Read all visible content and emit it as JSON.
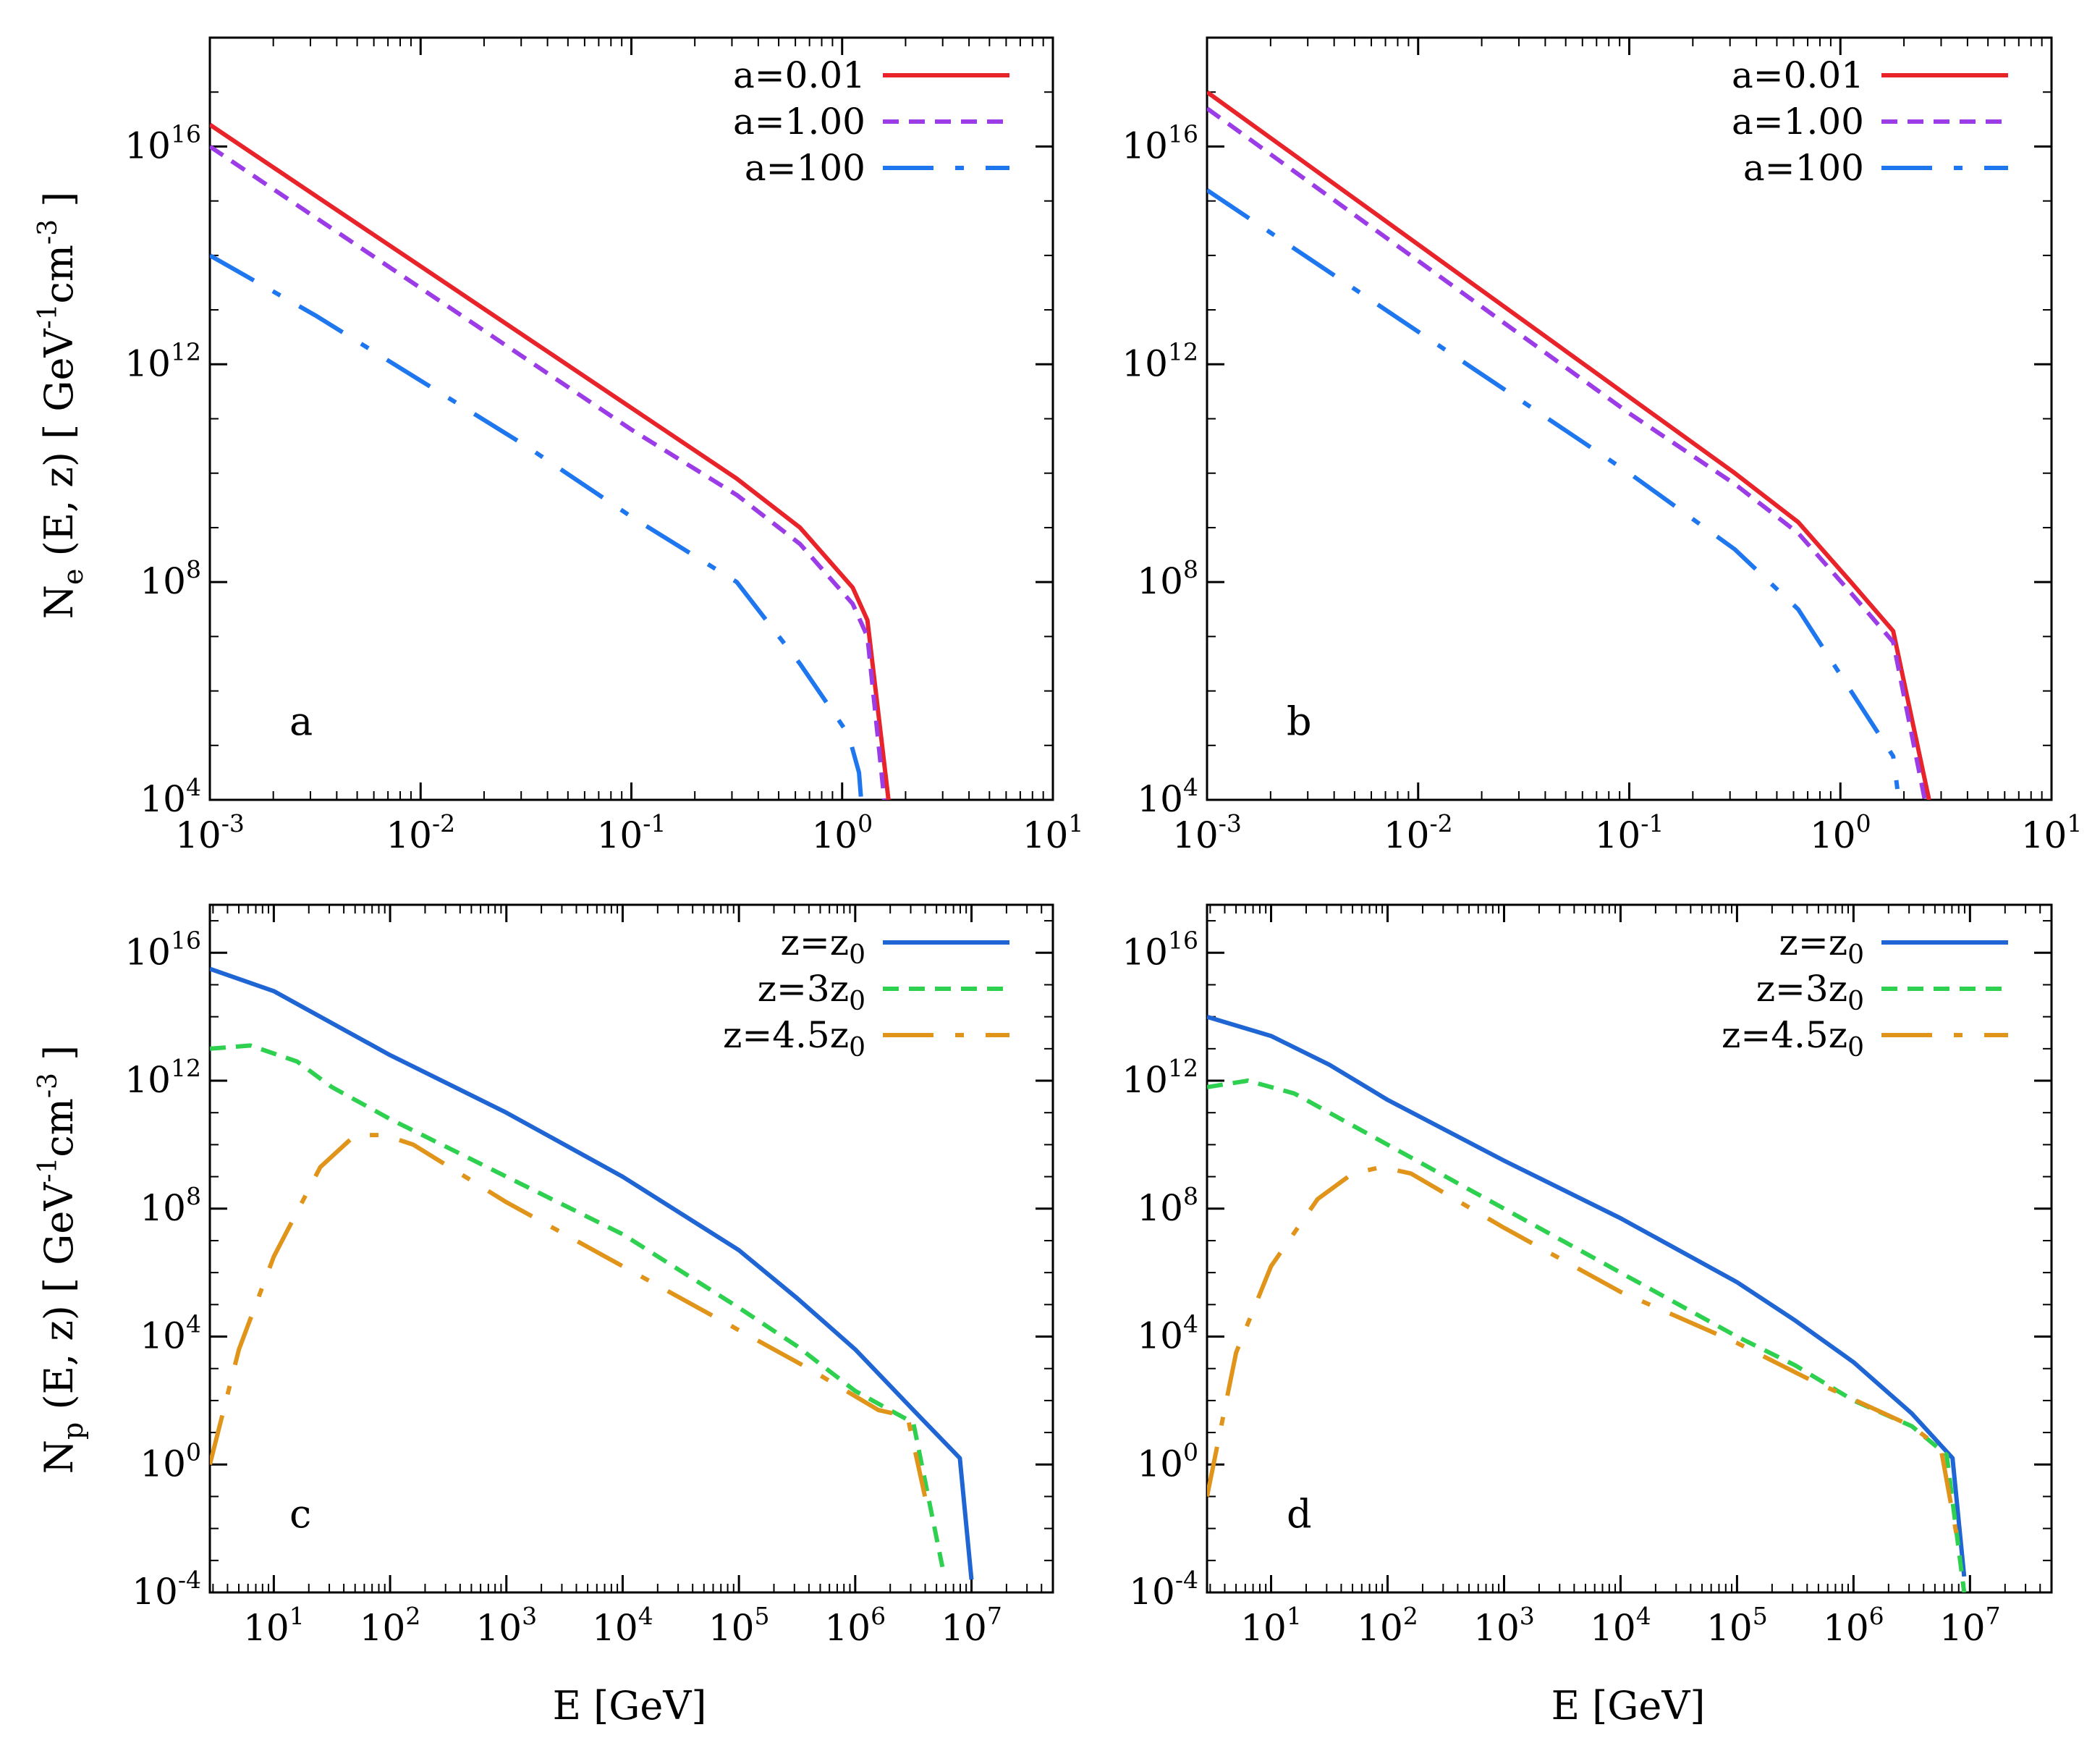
{
  "figure": {
    "ylabel_top": {
      "main": "N",
      "sub": "e",
      "rest": " (E, z)   [ GeV",
      "exp1": "-1",
      "mid": "cm",
      "exp2": "-3",
      "close": " ]"
    },
    "ylabel_bottom": {
      "main": "N",
      "sub": "p",
      "rest": " (E, z)   [ GeV",
      "exp1": "-1",
      "mid": "cm",
      "exp2": "-3",
      "close": " ]"
    },
    "xlabel": "E   [GeV]"
  },
  "chart_data": [
    {
      "id": "a",
      "type": "line",
      "panel_label": "a",
      "xscale": "log",
      "yscale": "log",
      "xlim_exp": [
        -3,
        1
      ],
      "ylim_exp": [
        4,
        18
      ],
      "xticks": [
        {
          "base": "10",
          "exp": "-3",
          "v": -3
        },
        {
          "base": "10",
          "exp": "-2",
          "v": -2
        },
        {
          "base": "10",
          "exp": "-1",
          "v": -1
        },
        {
          "base": "10",
          "exp": "0",
          "v": 0
        },
        {
          "base": "10",
          "exp": "1",
          "v": 1
        }
      ],
      "yticks": [
        {
          "base": "10",
          "exp": "4",
          "v": 4
        },
        {
          "base": "10",
          "exp": "8",
          "v": 8
        },
        {
          "base": "10",
          "exp": "12",
          "v": 12
        },
        {
          "base": "10",
          "exp": "16",
          "v": 16
        }
      ],
      "legend_position": "top-right",
      "series": [
        {
          "name": "a=0.01",
          "color": "#e8232a",
          "style": "solid",
          "points": [
            [
              -3,
              16.4
            ],
            [
              -2.5,
              15.1
            ],
            [
              -2,
              13.8
            ],
            [
              -1.5,
              12.5
            ],
            [
              -1,
              11.2
            ],
            [
              -0.5,
              9.9
            ],
            [
              -0.2,
              9.0
            ],
            [
              0.05,
              7.9
            ],
            [
              0.12,
              7.3
            ],
            [
              0.22,
              4.0
            ]
          ]
        },
        {
          "name": "a=1.00",
          "color": "#9c3ce6",
          "style": "dash",
          "points": [
            [
              -3,
              16.0
            ],
            [
              -2.5,
              14.7
            ],
            [
              -2,
              13.4
            ],
            [
              -1.5,
              12.1
            ],
            [
              -1,
              10.8
            ],
            [
              -0.5,
              9.6
            ],
            [
              -0.2,
              8.7
            ],
            [
              0.05,
              7.6
            ],
            [
              0.12,
              7.0
            ],
            [
              0.2,
              4.0
            ]
          ]
        },
        {
          "name": "a=100",
          "color": "#1f77f0",
          "style": "dashdot",
          "points": [
            [
              -3,
              14.0
            ],
            [
              -2.5,
              12.9
            ],
            [
              -2,
              11.7
            ],
            [
              -1.5,
              10.5
            ],
            [
              -1,
              9.2
            ],
            [
              -0.5,
              8.0
            ],
            [
              -0.2,
              6.5
            ],
            [
              0.03,
              5.2
            ],
            [
              0.08,
              4.5
            ],
            [
              0.09,
              4.0
            ]
          ]
        }
      ]
    },
    {
      "id": "b",
      "type": "line",
      "panel_label": "b",
      "xscale": "log",
      "yscale": "log",
      "xlim_exp": [
        -3,
        1
      ],
      "ylim_exp": [
        4,
        18
      ],
      "xticks": [
        {
          "base": "10",
          "exp": "-3",
          "v": -3
        },
        {
          "base": "10",
          "exp": "-2",
          "v": -2
        },
        {
          "base": "10",
          "exp": "-1",
          "v": -1
        },
        {
          "base": "10",
          "exp": "0",
          "v": 0
        },
        {
          "base": "10",
          "exp": "1",
          "v": 1
        }
      ],
      "yticks": [
        {
          "base": "10",
          "exp": "4",
          "v": 4
        },
        {
          "base": "10",
          "exp": "8",
          "v": 8
        },
        {
          "base": "10",
          "exp": "12",
          "v": 12
        },
        {
          "base": "10",
          "exp": "16",
          "v": 16
        }
      ],
      "legend_position": "top-right",
      "series": [
        {
          "name": "a=0.01",
          "color": "#e8232a",
          "style": "solid",
          "points": [
            [
              -3,
              17.0
            ],
            [
              -2.5,
              15.6
            ],
            [
              -2,
              14.2
            ],
            [
              -1.5,
              12.8
            ],
            [
              -1,
              11.4
            ],
            [
              -0.5,
              10.0
            ],
            [
              -0.2,
              9.1
            ],
            [
              0.05,
              8.0
            ],
            [
              0.25,
              7.1
            ],
            [
              0.42,
              4.0
            ]
          ]
        },
        {
          "name": "a=1.00",
          "color": "#9c3ce6",
          "style": "dash",
          "points": [
            [
              -3,
              16.7
            ],
            [
              -2.5,
              15.3
            ],
            [
              -2,
              13.9
            ],
            [
              -1.5,
              12.5
            ],
            [
              -1,
              11.1
            ],
            [
              -0.5,
              9.8
            ],
            [
              -0.2,
              8.9
            ],
            [
              0.05,
              7.8
            ],
            [
              0.25,
              6.9
            ],
            [
              0.4,
              4.0
            ]
          ]
        },
        {
          "name": "a=100",
          "color": "#1f77f0",
          "style": "dashdot",
          "points": [
            [
              -3,
              15.2
            ],
            [
              -2.5,
              13.9
            ],
            [
              -2,
              12.6
            ],
            [
              -1.5,
              11.3
            ],
            [
              -1,
              10.0
            ],
            [
              -0.5,
              8.6
            ],
            [
              -0.2,
              7.5
            ],
            [
              0.05,
              6.0
            ],
            [
              0.25,
              4.8
            ],
            [
              0.27,
              4.2
            ]
          ]
        }
      ]
    },
    {
      "id": "c",
      "type": "line",
      "panel_label": "c",
      "xscale": "log",
      "yscale": "log",
      "xlim_exp": [
        0.45,
        7.7
      ],
      "ylim_exp": [
        -4,
        17.5
      ],
      "xticks": [
        {
          "base": "10",
          "exp": "1",
          "v": 1
        },
        {
          "base": "10",
          "exp": "2",
          "v": 2
        },
        {
          "base": "10",
          "exp": "3",
          "v": 3
        },
        {
          "base": "10",
          "exp": "4",
          "v": 4
        },
        {
          "base": "10",
          "exp": "5",
          "v": 5
        },
        {
          "base": "10",
          "exp": "6",
          "v": 6
        },
        {
          "base": "10",
          "exp": "7",
          "v": 7
        }
      ],
      "yticks": [
        {
          "base": "10",
          "exp": "-4",
          "v": -4
        },
        {
          "base": "10",
          "exp": "0",
          "v": 0
        },
        {
          "base": "10",
          "exp": "4",
          "v": 4
        },
        {
          "base": "10",
          "exp": "8",
          "v": 8
        },
        {
          "base": "10",
          "exp": "12",
          "v": 12
        },
        {
          "base": "10",
          "exp": "16",
          "v": 16
        }
      ],
      "legend_position": "top-right",
      "series": [
        {
          "name_base": "z=z",
          "name_sub": "0",
          "color": "#1f66d4",
          "style": "solid",
          "points": [
            [
              0.45,
              15.5
            ],
            [
              1,
              14.8
            ],
            [
              1.5,
              13.8
            ],
            [
              2,
              12.8
            ],
            [
              3,
              11.0
            ],
            [
              4,
              9.0
            ],
            [
              5,
              6.7
            ],
            [
              5.5,
              5.2
            ],
            [
              6,
              3.6
            ],
            [
              6.5,
              1.7
            ],
            [
              6.9,
              0.2
            ],
            [
              7.0,
              -3.6
            ]
          ]
        },
        {
          "name_base": "z=3z",
          "name_sub": "0",
          "color": "#2ed14f",
          "style": "dash",
          "points": [
            [
              0.45,
              13.0
            ],
            [
              0.8,
              13.1
            ],
            [
              1.2,
              12.6
            ],
            [
              1.5,
              11.8
            ],
            [
              2,
              10.8
            ],
            [
              3,
              9.0
            ],
            [
              4,
              7.2
            ],
            [
              5,
              4.9
            ],
            [
              5.5,
              3.7
            ],
            [
              6,
              2.3
            ],
            [
              6.5,
              1.3
            ],
            [
              6.75,
              -3.2
            ]
          ]
        },
        {
          "name_base": "z=4.5z",
          "name_sub": "0",
          "color": "#e0941a",
          "style": "dashdot",
          "points": [
            [
              0.45,
              0.0
            ],
            [
              0.7,
              3.6
            ],
            [
              1,
              6.5
            ],
            [
              1.4,
              9.3
            ],
            [
              1.7,
              10.3
            ],
            [
              1.95,
              10.3
            ],
            [
              2.2,
              10.0
            ],
            [
              3,
              8.2
            ],
            [
              4,
              6.2
            ],
            [
              5,
              4.2
            ],
            [
              5.6,
              3.0
            ],
            [
              6.2,
              1.7
            ],
            [
              6.45,
              1.5
            ],
            [
              6.6,
              -1.0
            ]
          ]
        }
      ]
    },
    {
      "id": "d",
      "type": "line",
      "panel_label": "d",
      "xscale": "log",
      "yscale": "log",
      "xlim_exp": [
        0.45,
        7.7
      ],
      "ylim_exp": [
        -4,
        17.5
      ],
      "xticks": [
        {
          "base": "10",
          "exp": "1",
          "v": 1
        },
        {
          "base": "10",
          "exp": "2",
          "v": 2
        },
        {
          "base": "10",
          "exp": "3",
          "v": 3
        },
        {
          "base": "10",
          "exp": "4",
          "v": 4
        },
        {
          "base": "10",
          "exp": "5",
          "v": 5
        },
        {
          "base": "10",
          "exp": "6",
          "v": 6
        },
        {
          "base": "10",
          "exp": "7",
          "v": 7
        }
      ],
      "yticks": [
        {
          "base": "10",
          "exp": "-4",
          "v": -4
        },
        {
          "base": "10",
          "exp": "0",
          "v": 0
        },
        {
          "base": "10",
          "exp": "4",
          "v": 4
        },
        {
          "base": "10",
          "exp": "8",
          "v": 8
        },
        {
          "base": "10",
          "exp": "12",
          "v": 12
        },
        {
          "base": "10",
          "exp": "16",
          "v": 16
        }
      ],
      "legend_position": "top-right",
      "series": [
        {
          "name_base": "z=z",
          "name_sub": "0",
          "color": "#1f66d4",
          "style": "solid",
          "points": [
            [
              0.45,
              14.0
            ],
            [
              1,
              13.4
            ],
            [
              1.5,
              12.5
            ],
            [
              2,
              11.4
            ],
            [
              3,
              9.5
            ],
            [
              4,
              7.7
            ],
            [
              5,
              5.7
            ],
            [
              5.5,
              4.5
            ],
            [
              6,
              3.2
            ],
            [
              6.5,
              1.6
            ],
            [
              6.85,
              0.2
            ],
            [
              6.95,
              -3.5
            ]
          ]
        },
        {
          "name_base": "z=3z",
          "name_sub": "0",
          "color": "#2ed14f",
          "style": "dash",
          "points": [
            [
              0.45,
              11.8
            ],
            [
              0.8,
              12.0
            ],
            [
              1.2,
              11.6
            ],
            [
              1.5,
              11.0
            ],
            [
              2,
              10.0
            ],
            [
              3,
              8.0
            ],
            [
              4,
              6.0
            ],
            [
              5,
              4.0
            ],
            [
              5.5,
              3.1
            ],
            [
              6,
              2.0
            ],
            [
              6.5,
              1.2
            ],
            [
              6.8,
              0.3
            ],
            [
              6.95,
              -4.0
            ]
          ]
        },
        {
          "name_base": "z=4.5z",
          "name_sub": "0",
          "color": "#e0941a",
          "style": "dashdot",
          "points": [
            [
              0.45,
              -1.0
            ],
            [
              0.7,
              3.5
            ],
            [
              1,
              6.2
            ],
            [
              1.4,
              8.3
            ],
            [
              1.7,
              9.1
            ],
            [
              1.95,
              9.3
            ],
            [
              2.2,
              9.1
            ],
            [
              3,
              7.4
            ],
            [
              4,
              5.4
            ],
            [
              5,
              3.8
            ],
            [
              5.6,
              2.7
            ],
            [
              6.2,
              1.7
            ],
            [
              6.5,
              1.2
            ],
            [
              6.75,
              0.5
            ],
            [
              6.9,
              -2.5
            ]
          ]
        }
      ]
    }
  ]
}
